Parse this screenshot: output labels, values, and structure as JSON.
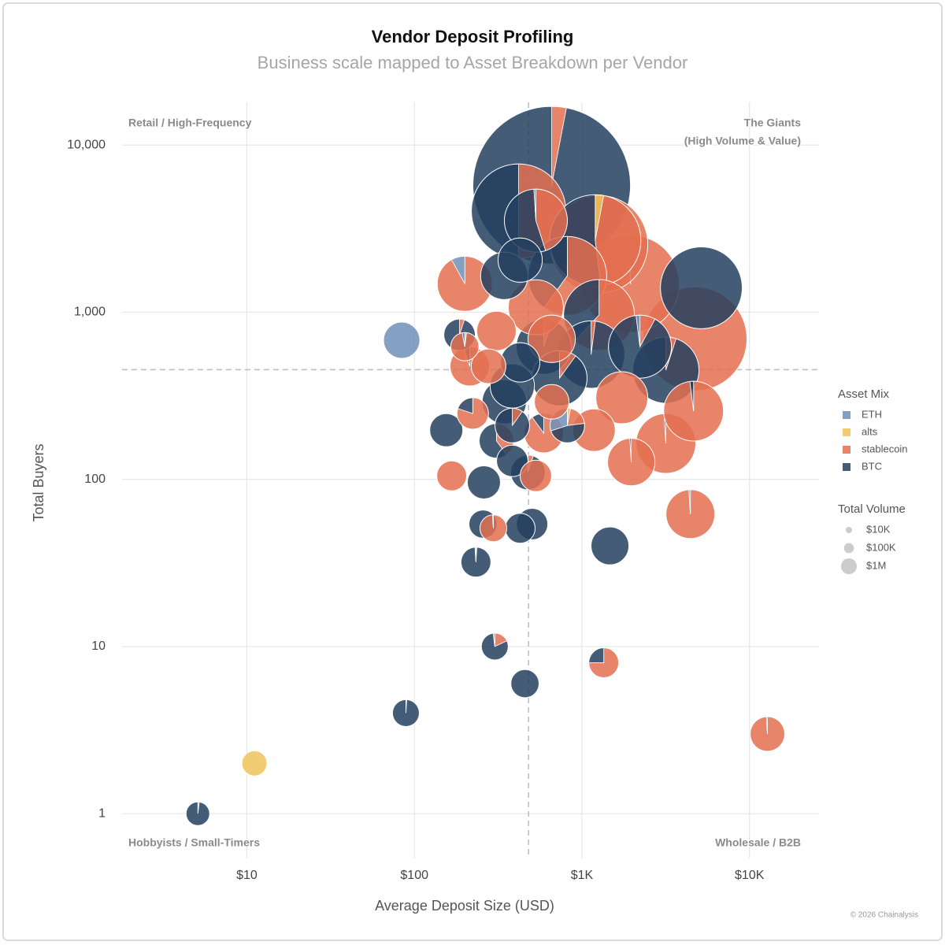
{
  "chart_data": {
    "type": "scatter-pie",
    "title": "Vendor Deposit Profiling",
    "subtitle": "Business scale mapped to Asset Breakdown per Vendor",
    "x_label": "Average Deposit Size (USD)",
    "y_label": "Total Buyers",
    "log_x": true,
    "log_y": true,
    "grid": true,
    "xlim": [
      1.8,
      26000
    ],
    "ylim": [
      0.54,
      18000
    ],
    "xticks": [
      {
        "value": 10,
        "label": "$10"
      },
      {
        "value": 100,
        "label": "$100"
      },
      {
        "value": 1000,
        "label": "$1K"
      },
      {
        "value": 10000,
        "label": "$10K"
      }
    ],
    "yticks": [
      1,
      10,
      100,
      {
        "value": 1000,
        "label": "1,000"
      },
      {
        "value": 10000,
        "label": "10,000"
      }
    ],
    "reference_lines": {
      "x": 480,
      "y": 453
    },
    "quadrant_labels": {
      "top_left": [
        "Retail / High-Frequency"
      ],
      "top_right": [
        "The Giants",
        "(High Volume & Value)"
      ],
      "bottom_left": [
        "Hobbyists / Small-Timers"
      ],
      "bottom_right": [
        "Wholesale / B2B"
      ]
    },
    "legend_title": "Asset Mix",
    "series": [
      {
        "name": "ETH",
        "color": "#6f8fb8"
      },
      {
        "name": "alts",
        "color": "#f0c35a"
      },
      {
        "name": "stablecoin",
        "color": "#e36f50"
      },
      {
        "name": "BTC",
        "color": "#24405f"
      }
    ],
    "size_legend": {
      "title": "Total Volume",
      "items": [
        {
          "value": 10000,
          "label": "$10K"
        },
        {
          "value": 100000,
          "label": "$100K"
        },
        {
          "value": 1000000,
          "label": "$1M"
        }
      ]
    },
    "vendors": [
      {
        "x": 660,
        "y": 5750,
        "volume": 98000000000,
        "mix": [
          0,
          0,
          3,
          97
        ]
      },
      {
        "x": 4730,
        "y": 693,
        "volume": 12200000000,
        "mix": [
          0,
          0,
          100,
          0
        ]
      },
      {
        "x": 1950,
        "y": 1480,
        "volume": 8900000000,
        "mix": [
          1,
          0,
          99,
          0
        ]
      },
      {
        "x": 1265,
        "y": 2550,
        "volume": 8900000000,
        "mix": [
          0,
          0,
          100,
          0
        ]
      },
      {
        "x": 419,
        "y": 4020,
        "volume": 7600000000,
        "mix": [
          0,
          0,
          50,
          50
        ]
      },
      {
        "x": 1200,
        "y": 2690,
        "volume": 6400000000,
        "mix": [
          0,
          3,
          45,
          52
        ]
      },
      {
        "x": 5160,
        "y": 1400,
        "volume": 3700000000,
        "mix": [
          0,
          0,
          0,
          100
        ]
      },
      {
        "x": 818,
        "y": 1650,
        "volume": 3050000000,
        "mix": [
          0,
          0,
          60,
          40
        ]
      },
      {
        "x": 1265,
        "y": 962,
        "volume": 1800000000,
        "mix": [
          0,
          0,
          62,
          38
        ]
      },
      {
        "x": 1135,
        "y": 558,
        "volume": 1400000000,
        "mix": [
          0,
          0,
          2,
          98
        ]
      },
      {
        "x": 3170,
        "y": 450,
        "volume": 1280000000,
        "mix": [
          0,
          0,
          5,
          95
        ]
      },
      {
        "x": 531,
        "y": 3530,
        "volume": 1000000000,
        "mix": [
          1,
          0,
          45,
          54
        ]
      },
      {
        "x": 2220,
        "y": 622,
        "volume": 1000000000,
        "mix": [
          2,
          0,
          8,
          90
        ]
      },
      {
        "x": 3170,
        "y": 164,
        "volume": 770000000,
        "mix": [
          0,
          0,
          99,
          1
        ]
      },
      {
        "x": 4640,
        "y": 256,
        "volume": 770000000,
        "mix": [
          0,
          0,
          98,
          2
        ]
      },
      {
        "x": 200,
        "y": 1480,
        "volume": 510000000,
        "mix": [
          8,
          0,
          92,
          0
        ]
      },
      {
        "x": 592,
        "y": 622,
        "volume": 510000000,
        "mix": [
          0,
          0,
          5,
          95
        ]
      },
      {
        "x": 735,
        "y": 403,
        "volume": 510000000,
        "mix": [
          0,
          0,
          10,
          90
        ]
      },
      {
        "x": 531,
        "y": 1070,
        "volume": 510000000,
        "mix": [
          0,
          0,
          100,
          0
        ]
      },
      {
        "x": 1730,
        "y": 308,
        "volume": 380000000,
        "mix": [
          0,
          0,
          100,
          0
        ]
      },
      {
        "x": 4440,
        "y": 62,
        "volume": 280000000,
        "mix": [
          1,
          0,
          99,
          0
        ]
      },
      {
        "x": 1970,
        "y": 127,
        "volume": 240000000,
        "mix": [
          0,
          0,
          99,
          1
        ]
      },
      {
        "x": 344,
        "y": 1650,
        "volume": 240000000,
        "mix": [
          0,
          0,
          0,
          100
        ]
      },
      {
        "x": 660,
        "y": 693,
        "volume": 240000000,
        "mix": [
          0,
          0,
          100,
          0
        ]
      },
      {
        "x": 344,
        "y": 291,
        "volume": 170000000,
        "mix": [
          0,
          0,
          0,
          100
        ]
      },
      {
        "x": 384,
        "y": 362,
        "volume": 170000000,
        "mix": [
          0,
          0,
          0,
          100
        ]
      },
      {
        "x": 428,
        "y": 2050,
        "volume": 170000000,
        "mix": [
          0,
          0,
          0,
          100
        ]
      },
      {
        "x": 1180,
        "y": 197,
        "volume": 140000000,
        "mix": [
          0,
          0,
          100,
          0
        ]
      },
      {
        "x": 214,
        "y": 475,
        "volume": 95000000,
        "mix": [
          0,
          0,
          95,
          5
        ]
      },
      {
        "x": 592,
        "y": 189,
        "volume": 95000000,
        "mix": [
          0,
          0,
          90,
          10
        ]
      },
      {
        "x": 428,
        "y": 501,
        "volume": 95000000,
        "mix": [
          0,
          0,
          0,
          100
        ]
      },
      {
        "x": 309,
        "y": 773,
        "volume": 95000000,
        "mix": [
          0,
          0,
          100,
          0
        ]
      },
      {
        "x": 1470,
        "y": 40,
        "volume": 78000000,
        "mix": [
          0,
          0,
          0,
          100
        ]
      },
      {
        "x": 84,
        "y": 680,
        "volume": 63000000,
        "mix": [
          100,
          0,
          0,
          0
        ]
      },
      {
        "x": 12800,
        "y": 3,
        "volume": 50000000,
        "mix": [
          0,
          0,
          99,
          1
        ]
      },
      {
        "x": 309,
        "y": 170,
        "volume": 50000000,
        "mix": [
          0,
          0,
          40,
          60
        ]
      },
      {
        "x": 476,
        "y": 110,
        "volume": 50000000,
        "mix": [
          0,
          0,
          5,
          95
        ]
      },
      {
        "x": 818,
        "y": 210,
        "volume": 50000000,
        "mix": [
          30,
          3,
          20,
          47
        ]
      },
      {
        "x": 277,
        "y": 475,
        "volume": 50000000,
        "mix": [
          0,
          0,
          100,
          0
        ]
      },
      {
        "x": 660,
        "y": 291,
        "volume": 50000000,
        "mix": [
          0,
          0,
          100,
          0
        ]
      },
      {
        "x": 384,
        "y": 210,
        "volume": 50000000,
        "mix": [
          0,
          0,
          10,
          90
        ]
      },
      {
        "x": 155,
        "y": 197,
        "volume": 40000000,
        "mix": [
          0,
          0,
          0,
          100
        ]
      },
      {
        "x": 260,
        "y": 96,
        "volume": 40000000,
        "mix": [
          0,
          0,
          0,
          100
        ]
      },
      {
        "x": 504,
        "y": 54,
        "volume": 31000000,
        "mix": [
          0,
          0,
          0,
          100
        ]
      },
      {
        "x": 186,
        "y": 733,
        "volume": 31000000,
        "mix": [
          0,
          0,
          5,
          95
        ]
      },
      {
        "x": 223,
        "y": 248,
        "volume": 31000000,
        "mix": [
          0,
          0,
          80,
          20
        ]
      },
      {
        "x": 384,
        "y": 129,
        "volume": 31000000,
        "mix": [
          0,
          0,
          0,
          100
        ]
      },
      {
        "x": 531,
        "y": 105,
        "volume": 31000000,
        "mix": [
          0,
          0,
          100,
          0
        ]
      },
      {
        "x": 1350,
        "y": 8,
        "volume": 24000000,
        "mix": [
          0,
          0,
          75,
          25
        ]
      },
      {
        "x": 233,
        "y": 32,
        "volume": 24000000,
        "mix": [
          1,
          0,
          1,
          98
        ]
      },
      {
        "x": 167,
        "y": 105,
        "volume": 24000000,
        "mix": [
          0,
          0,
          100,
          0
        ]
      },
      {
        "x": 428,
        "y": 51,
        "volume": 24000000,
        "mix": [
          0,
          0,
          0,
          100
        ]
      },
      {
        "x": 457,
        "y": 6,
        "volume": 18000000,
        "mix": [
          0,
          0,
          0,
          100
        ]
      },
      {
        "x": 257,
        "y": 54,
        "volume": 18000000,
        "mix": [
          0,
          0,
          0,
          100
        ]
      },
      {
        "x": 200,
        "y": 622,
        "volume": 18000000,
        "mix": [
          3,
          2,
          95,
          0
        ]
      },
      {
        "x": 89,
        "y": 4,
        "volume": 14000000,
        "mix": [
          0,
          0,
          1,
          99
        ]
      },
      {
        "x": 302,
        "y": 10,
        "volume": 14000000,
        "mix": [
          2,
          0,
          18,
          80
        ]
      },
      {
        "x": 296,
        "y": 51,
        "volume": 14000000,
        "mix": [
          1,
          0,
          99,
          0
        ]
      },
      {
        "x": 11.1,
        "y": 2,
        "volume": 10000000,
        "mix": [
          0,
          100,
          0,
          0
        ]
      },
      {
        "x": 5.1,
        "y": 1,
        "volume": 7400000,
        "mix": [
          0,
          0,
          2,
          98
        ]
      }
    ],
    "credit": "© 2026 Chainalysis"
  }
}
